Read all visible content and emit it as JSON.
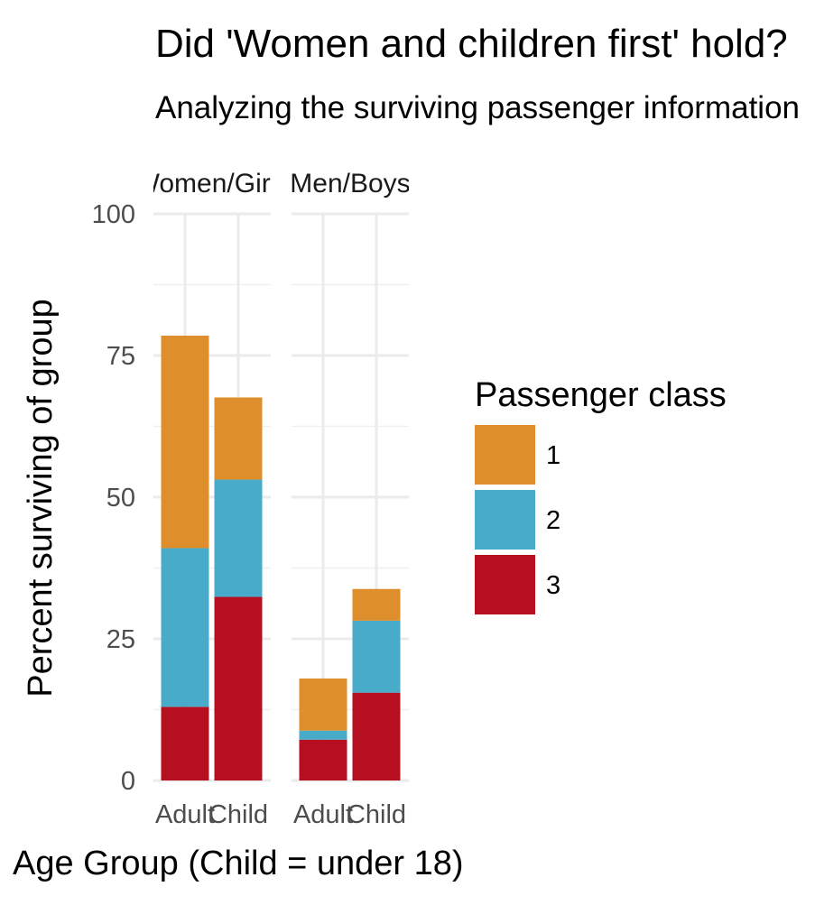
{
  "chart_data": {
    "type": "bar",
    "stacked": true,
    "title": "Did 'Women and children first' hold?",
    "subtitle": "Analyzing the surviving passenger information",
    "xlabel": "Age Group (Child = under 18)",
    "ylabel": "Percent surviving of group",
    "ylim": [
      0,
      100
    ],
    "yticks": [
      "0",
      "25",
      "50",
      "75",
      "100"
    ],
    "grid": true,
    "legend": {
      "title": "Passenger class",
      "position": "right"
    },
    "panels": [
      {
        "label": "Women/Girls",
        "categories": [
          "Adult",
          "Child"
        ],
        "series": [
          {
            "name": "1",
            "color": "#DE8F2C",
            "values": [
              37.5,
              14.5
            ]
          },
          {
            "name": "2",
            "color": "#48ABC9",
            "values": [
              28.0,
              20.7
            ]
          },
          {
            "name": "3",
            "color": "#B50F20",
            "values": [
              13.0,
              32.4
            ]
          }
        ]
      },
      {
        "label": "Men/Boys",
        "categories": [
          "Adult",
          "Child"
        ],
        "series": [
          {
            "name": "1",
            "color": "#DE8F2C",
            "values": [
              9.2,
              5.6
            ]
          },
          {
            "name": "2",
            "color": "#48ABC9",
            "values": [
              1.6,
              12.7
            ]
          },
          {
            "name": "3",
            "color": "#B50F20",
            "values": [
              7.2,
              15.5
            ]
          }
        ]
      }
    ]
  }
}
